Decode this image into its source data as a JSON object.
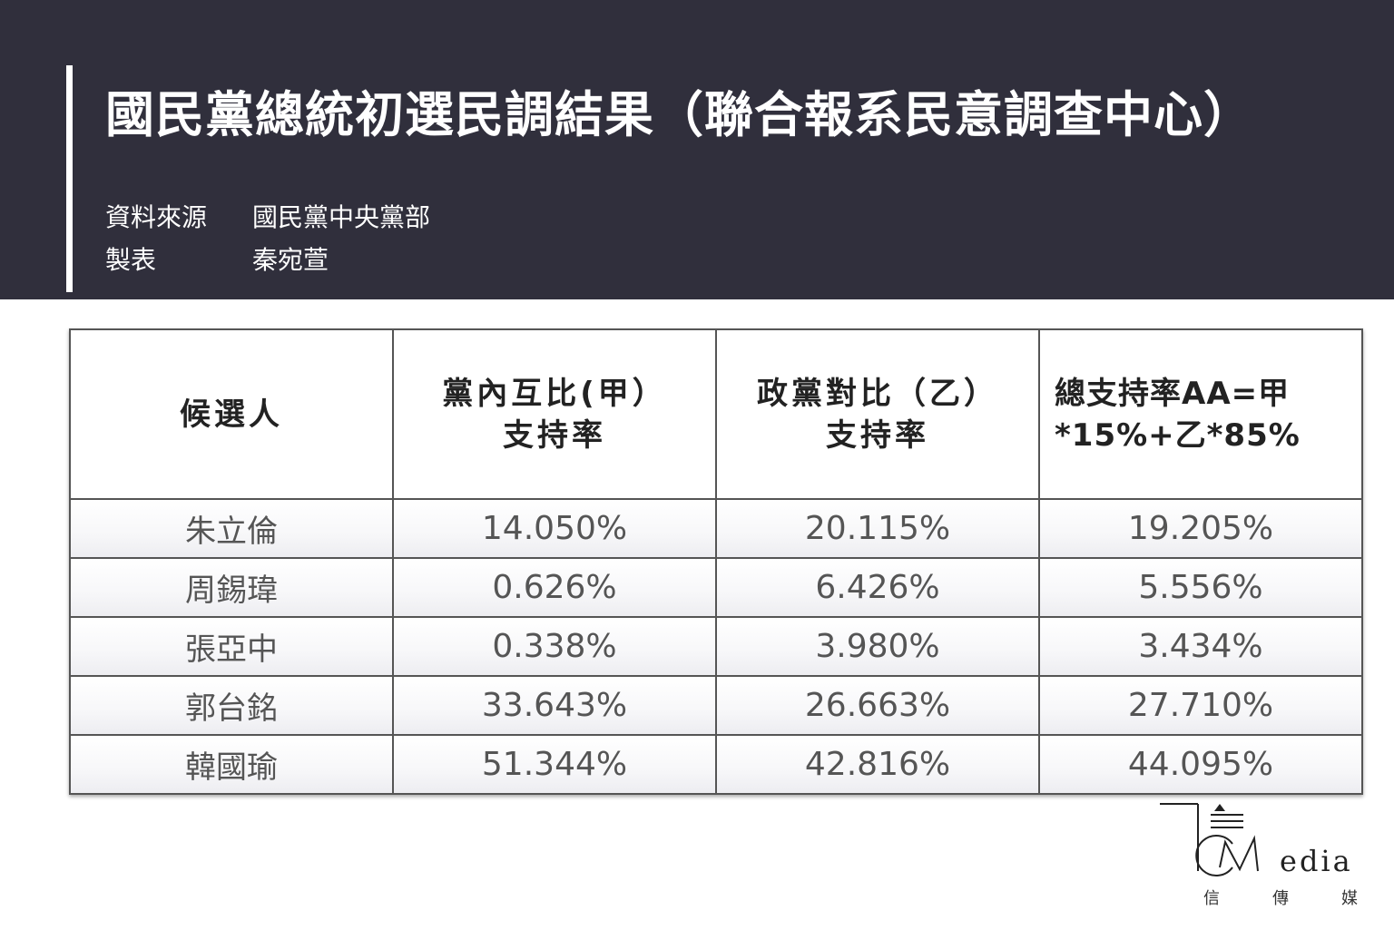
{
  "title": "國民黨總統初選民調結果（聯合報系民意調查中心）",
  "meta": {
    "source_label": "資料來源",
    "source_value": "國民黨中央黨部",
    "author_label": "製表",
    "author_value": "秦宛萱"
  },
  "table": {
    "headers": [
      {
        "line1": "候選人",
        "line2": ""
      },
      {
        "line1": "黨內互比(甲）",
        "line2": "支持率"
      },
      {
        "line1": "政黨對比（乙）",
        "line2": "支持率"
      },
      {
        "line1": "總支持率AA=甲",
        "line2": "*15%+乙*85%"
      }
    ],
    "rows": [
      {
        "name": "朱立倫",
        "a": "14.050%",
        "b": "20.115%",
        "total": "19.205%"
      },
      {
        "name": "周錫瑋",
        "a": "0.626%",
        "b": "6.426%",
        "total": "5.556%"
      },
      {
        "name": "張亞中",
        "a": "0.338%",
        "b": "3.980%",
        "total": "3.434%"
      },
      {
        "name": "郭台銘",
        "a": "33.643%",
        "b": "26.663%",
        "total": "27.710%"
      },
      {
        "name": "韓國瑜",
        "a": "51.344%",
        "b": "42.816%",
        "total": "44.095%"
      }
    ]
  },
  "logo": {
    "wordmark": "edia",
    "sub": [
      "信",
      "傳",
      "媒"
    ]
  },
  "colors": {
    "header_bg": "#302f3c",
    "text_dark": "#222222",
    "cell_text": "#555555"
  }
}
